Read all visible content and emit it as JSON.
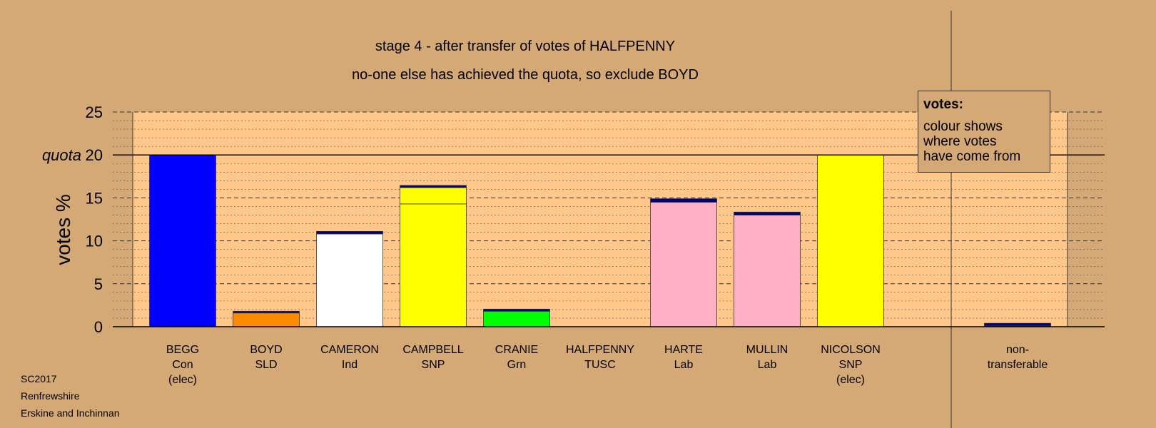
{
  "chart_data": {
    "type": "bar",
    "title": "stage 4 - after transfer of votes of HALFPENNY",
    "subtitle": "no-one else has achieved the quota, so exclude BOYD",
    "ylabel": "votes %",
    "quota_label": "quota",
    "quota_value": 20,
    "ylim": [
      0,
      25
    ],
    "yticks": [
      0,
      5,
      10,
      15,
      20,
      25
    ],
    "grid": true,
    "categories": [
      {
        "name": "BEGG",
        "party": "Con",
        "status": "(elec)"
      },
      {
        "name": "BOYD",
        "party": "SLD",
        "status": ""
      },
      {
        "name": "CAMERON",
        "party": "Ind",
        "status": ""
      },
      {
        "name": "CAMPBELL",
        "party": "SNP",
        "status": ""
      },
      {
        "name": "CRANIE",
        "party": "Grn",
        "status": ""
      },
      {
        "name": "HALFPENNY",
        "party": "TUSC",
        "status": ""
      },
      {
        "name": "HARTE",
        "party": "Lab",
        "status": ""
      },
      {
        "name": "MULLIN",
        "party": "Lab",
        "status": ""
      },
      {
        "name": "NICOLSON",
        "party": "SNP",
        "status": "(elec)"
      }
    ],
    "bars": [
      {
        "segments": [
          {
            "value": 20.0,
            "color": "#0000ff"
          }
        ]
      },
      {
        "segments": [
          {
            "value": 1.6,
            "color": "#ff8c00"
          },
          {
            "value": 0.2,
            "color": "#000080"
          }
        ]
      },
      {
        "segments": [
          {
            "value": 10.8,
            "color": "#ffffff"
          },
          {
            "value": 0.3,
            "color": "#000080"
          }
        ]
      },
      {
        "segments": [
          {
            "value": 14.3,
            "color": "#ffff00"
          },
          {
            "value": 1.9,
            "color": "#ffff00"
          },
          {
            "value": 0.25,
            "color": "#000080"
          }
        ]
      },
      {
        "segments": [
          {
            "value": 1.8,
            "color": "#00ff00"
          },
          {
            "value": 0.25,
            "color": "#000080"
          }
        ]
      },
      {
        "segments": []
      },
      {
        "segments": [
          {
            "value": 14.5,
            "color": "#ffb0c4"
          },
          {
            "value": 0.4,
            "color": "#000080"
          }
        ]
      },
      {
        "segments": [
          {
            "value": 13.0,
            "color": "#ffb0c4"
          },
          {
            "value": 0.35,
            "color": "#000080"
          }
        ]
      },
      {
        "segments": [
          {
            "value": 20.0,
            "color": "#ffff00"
          }
        ]
      }
    ],
    "non_transferable": {
      "label_line1": "non-",
      "label_line2": "transferable",
      "segments": [
        {
          "value": 0.1,
          "color": "#000080"
        },
        {
          "value": 0.3,
          "color": "#000080"
        }
      ]
    },
    "plot_background": "#ffc78a",
    "page_background": "#d4a976"
  },
  "legend": {
    "title": "votes:",
    "line1": "colour shows",
    "line2": "where votes",
    "line3": "have come from"
  },
  "footer": {
    "line1": "SC2017",
    "line2": "Renfrewshire",
    "line3": "Erskine and Inchinnan"
  }
}
